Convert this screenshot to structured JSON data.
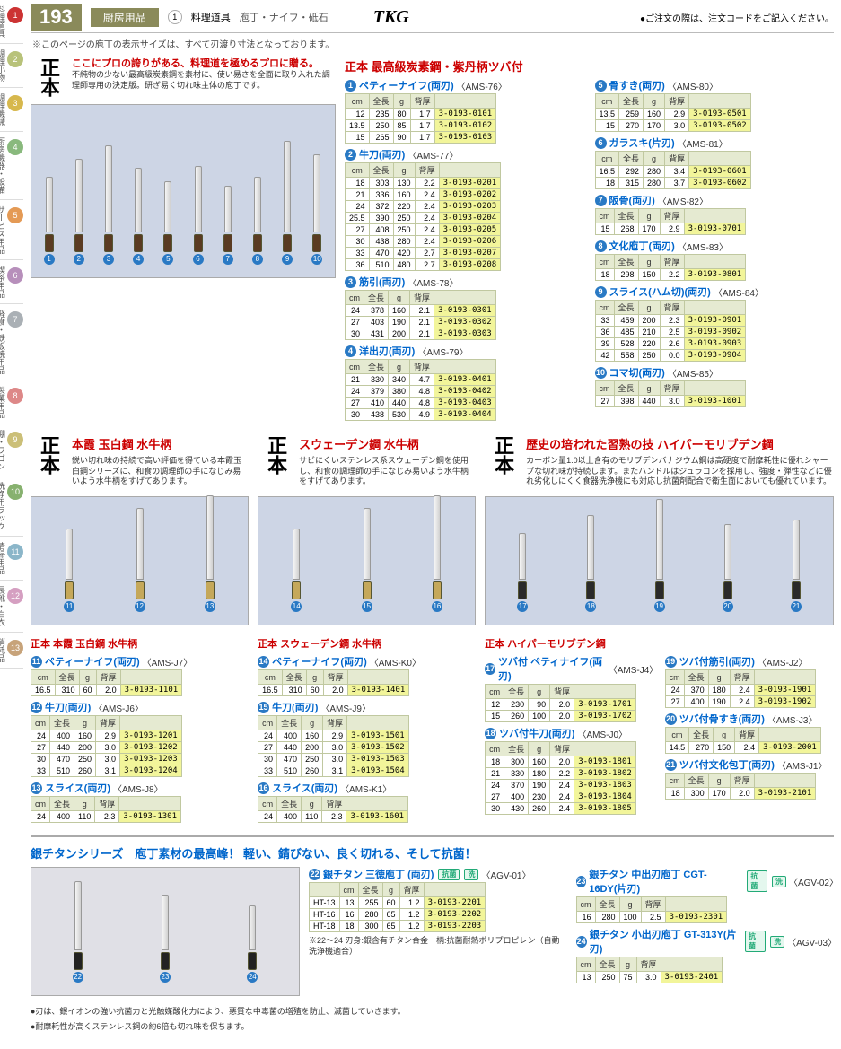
{
  "header": {
    "page_number": "193",
    "category": "厨房用品",
    "section_num": "1",
    "section": "料理道具",
    "subsection": "庖丁・ナイフ・砥石",
    "brand": "TKG",
    "order_note": "●ご注文の際は、注文コードをご記入ください。"
  },
  "sidebar": [
    {
      "n": "1",
      "label": "料理道具",
      "bg": "#c33"
    },
    {
      "n": "2",
      "label": "調理小物",
      "bg": "#b8c27a"
    },
    {
      "n": "3",
      "label": "調理機械",
      "bg": "#d7b84d"
    },
    {
      "n": "4",
      "label": "厨房機器・設備",
      "bg": "#89b97d"
    },
    {
      "n": "5",
      "label": "サービス用品",
      "bg": "#e49a55"
    },
    {
      "n": "6",
      "label": "喫茶用品",
      "bg": "#b78fbb"
    },
    {
      "n": "7",
      "label": "軽食・鉄板焼用品",
      "bg": "#aab0b5"
    },
    {
      "n": "8",
      "label": "製菓用品",
      "bg": "#d88"
    },
    {
      "n": "9",
      "label": "棚・ワゴン",
      "bg": "#cbbf78"
    },
    {
      "n": "10",
      "label": "洗浄用ラック",
      "bg": "#87b16f"
    },
    {
      "n": "11",
      "label": "清掃用品",
      "bg": "#8bb6c9"
    },
    {
      "n": "12",
      "label": "長靴・白衣",
      "bg": "#d59fc1"
    },
    {
      "n": "13",
      "label": "消耗品",
      "bg": "#c7a37a"
    }
  ],
  "top_note": "※このページの庖丁の表示サイズは、すべて刃渡り寸法となっております。",
  "brand_logo": "正本",
  "blockA": {
    "lead_red": "ここにプロの誇りがある、料理道を極めるプロに贈る。",
    "lead_txt": "不純物の少ない最高級炭素鋼を素材に、使い易さを全面に取り入れた調理師専用の決定版。研ぎ易く切れ味主体の庖丁です。",
    "image_knives": [
      {
        "n": "1",
        "blade": 60,
        "handle": 18,
        "hc": "#5a3b22"
      },
      {
        "n": "2",
        "blade": 80,
        "handle": 20,
        "hc": "#5a3b22"
      },
      {
        "n": "3",
        "blade": 95,
        "handle": 22,
        "hc": "#5a3b22"
      },
      {
        "n": "4",
        "blade": 70,
        "handle": 20,
        "hc": "#5a3b22"
      },
      {
        "n": "5",
        "blade": 55,
        "handle": 18,
        "hc": "#5a3b22"
      },
      {
        "n": "6",
        "blade": 72,
        "handle": 20,
        "hc": "#5a3b22"
      },
      {
        "n": "7",
        "blade": 50,
        "handle": 18,
        "hc": "#5a3b22"
      },
      {
        "n": "8",
        "blade": 60,
        "handle": 20,
        "hc": "#5a3b22"
      },
      {
        "n": "9",
        "blade": 100,
        "handle": 22,
        "hc": "#5a3b22"
      },
      {
        "n": "10",
        "blade": 85,
        "handle": 22,
        "hc": "#5a3b22"
      }
    ],
    "section_title": "正本 最高級炭素鋼・紫丹柄ツバ付",
    "left": [
      {
        "n": "1",
        "name": "ペティーナイフ(両刃)",
        "code": "〈AMS-76〉",
        "hdr": [
          "cm",
          "全長",
          "g",
          "背厚",
          ""
        ],
        "rows": [
          [
            "12",
            "235",
            "80",
            "1.7",
            "3-0193-0101"
          ],
          [
            "13.5",
            "250",
            "85",
            "1.7",
            "3-0193-0102"
          ],
          [
            "15",
            "265",
            "90",
            "1.7",
            "3-0193-0103"
          ]
        ]
      },
      {
        "n": "2",
        "name": "牛刀(両刃)",
        "code": "〈AMS-77〉",
        "hdr": [
          "cm",
          "全長",
          "g",
          "背厚",
          ""
        ],
        "rows": [
          [
            "18",
            "303",
            "130",
            "2.2",
            "3-0193-0201"
          ],
          [
            "21",
            "336",
            "160",
            "2.4",
            "3-0193-0202"
          ],
          [
            "24",
            "372",
            "220",
            "2.4",
            "3-0193-0203"
          ],
          [
            "25.5",
            "390",
            "250",
            "2.4",
            "3-0193-0204"
          ],
          [
            "27",
            "408",
            "250",
            "2.4",
            "3-0193-0205"
          ],
          [
            "30",
            "438",
            "280",
            "2.4",
            "3-0193-0206"
          ],
          [
            "33",
            "470",
            "420",
            "2.7",
            "3-0193-0207"
          ],
          [
            "36",
            "510",
            "480",
            "2.7",
            "3-0193-0208"
          ]
        ]
      },
      {
        "n": "3",
        "name": "筋引(両刃)",
        "code": "〈AMS-78〉",
        "hdr": [
          "cm",
          "全長",
          "g",
          "背厚",
          ""
        ],
        "rows": [
          [
            "24",
            "378",
            "160",
            "2.1",
            "3-0193-0301"
          ],
          [
            "27",
            "403",
            "190",
            "2.1",
            "3-0193-0302"
          ],
          [
            "30",
            "431",
            "200",
            "2.1",
            "3-0193-0303"
          ]
        ]
      },
      {
        "n": "4",
        "name": "洋出刃(両刃)",
        "code": "〈AMS-79〉",
        "hdr": [
          "cm",
          "全長",
          "g",
          "背厚",
          ""
        ],
        "rows": [
          [
            "21",
            "330",
            "340",
            "4.7",
            "3-0193-0401"
          ],
          [
            "24",
            "379",
            "380",
            "4.8",
            "3-0193-0402"
          ],
          [
            "27",
            "410",
            "440",
            "4.8",
            "3-0193-0403"
          ],
          [
            "30",
            "438",
            "530",
            "4.9",
            "3-0193-0404"
          ]
        ]
      }
    ],
    "right": [
      {
        "n": "5",
        "name": "骨すき(両刃)",
        "code": "〈AMS-80〉",
        "hdr": [
          "cm",
          "全長",
          "g",
          "背厚",
          ""
        ],
        "rows": [
          [
            "13.5",
            "259",
            "160",
            "2.9",
            "3-0193-0501"
          ],
          [
            "15",
            "270",
            "170",
            "3.0",
            "3-0193-0502"
          ]
        ]
      },
      {
        "n": "6",
        "name": "ガラスキ(片刃)",
        "code": "〈AMS-81〉",
        "hdr": [
          "cm",
          "全長",
          "g",
          "背厚",
          ""
        ],
        "rows": [
          [
            "16.5",
            "292",
            "280",
            "3.4",
            "3-0193-0601"
          ],
          [
            "18",
            "315",
            "280",
            "3.7",
            "3-0193-0602"
          ]
        ]
      },
      {
        "n": "7",
        "name": "阪骨(両刃)",
        "code": "〈AMS-82〉",
        "hdr": [
          "cm",
          "全長",
          "g",
          "背厚",
          ""
        ],
        "rows": [
          [
            "15",
            "268",
            "170",
            "2.9",
            "3-0193-0701"
          ]
        ]
      },
      {
        "n": "8",
        "name": "文化庖丁(両刃)",
        "code": "〈AMS-83〉",
        "hdr": [
          "cm",
          "全長",
          "g",
          "背厚",
          ""
        ],
        "rows": [
          [
            "18",
            "298",
            "150",
            "2.2",
            "3-0193-0801"
          ]
        ]
      },
      {
        "n": "9",
        "name": "スライス(ハム切)(両刃)",
        "code": "〈AMS-84〉",
        "hdr": [
          "cm",
          "全長",
          "g",
          "背厚",
          ""
        ],
        "rows": [
          [
            "33",
            "459",
            "200",
            "2.3",
            "3-0193-0901"
          ],
          [
            "36",
            "485",
            "210",
            "2.5",
            "3-0193-0902"
          ],
          [
            "39",
            "528",
            "220",
            "2.6",
            "3-0193-0903"
          ],
          [
            "42",
            "558",
            "250",
            "0.0",
            "3-0193-0904"
          ]
        ]
      },
      {
        "n": "10",
        "name": "コマ切(両刃)",
        "code": "〈AMS-85〉",
        "hdr": [
          "cm",
          "全長",
          "g",
          "背厚",
          ""
        ],
        "rows": [
          [
            "27",
            "398",
            "440",
            "3.0",
            "3-0193-1001"
          ]
        ]
      }
    ]
  },
  "blockB": {
    "groups": [
      {
        "title": "本霞 玉白鋼 水牛柄",
        "desc": "鋭い切れ味の持続で高い評価を得ている本霞玉白鋼シリーズに、和食の調理師の手になじみ易いよう水牛柄をすげてあります。",
        "handle_color": "#c5a85a",
        "knives": [
          {
            "n": "11",
            "b": 55
          },
          {
            "n": "12",
            "b": 78
          },
          {
            "n": "13",
            "b": 92
          }
        ]
      },
      {
        "title": "スウェーデン鋼 水牛柄",
        "desc": "サビにくいステンレス系スウェーデン鋼を使用し、和食の調理師の手になじみ易いよう水牛柄をすげてあります。",
        "handle_color": "#c5a85a",
        "knives": [
          {
            "n": "14",
            "b": 55
          },
          {
            "n": "15",
            "b": 78
          },
          {
            "n": "16",
            "b": 92
          }
        ]
      },
      {
        "title": "歴史の培われた習熟の技 ハイパーモリブデン鋼",
        "desc": "カーボン量1.0以上含有のモリブデンバナジウム鋼は高硬度で耐摩耗性に優れシャープな切れ味が持続します。またハンドルはジュラコンを採用し、強度・弾性などに優れ劣化しにくく食器洗浄機にも対応し抗菌剤配合で衛生面においても優れています。",
        "handle_color": "#2a2a2a",
        "knives": [
          {
            "n": "17",
            "b": 50
          },
          {
            "n": "18",
            "b": 70
          },
          {
            "n": "19",
            "b": 88
          },
          {
            "n": "20",
            "b": 60
          },
          {
            "n": "21",
            "b": 65
          }
        ]
      }
    ],
    "col1": {
      "heading": "正本 本霞 玉白鋼 水牛柄",
      "items": [
        {
          "n": "11",
          "name": "ペティーナイフ(両刃)",
          "code": "〈AMS-J7〉",
          "hdr": [
            "cm",
            "全長",
            "g",
            "背厚",
            ""
          ],
          "rows": [
            [
              "16.5",
              "310",
              "60",
              "2.0",
              "3-0193-1101"
            ]
          ]
        },
        {
          "n": "12",
          "name": "牛刀(両刃)",
          "code": "〈AMS-J6〉",
          "hdr": [
            "cm",
            "全長",
            "g",
            "背厚",
            ""
          ],
          "rows": [
            [
              "24",
              "400",
              "160",
              "2.9",
              "3-0193-1201"
            ],
            [
              "27",
              "440",
              "200",
              "3.0",
              "3-0193-1202"
            ],
            [
              "30",
              "470",
              "250",
              "3.0",
              "3-0193-1203"
            ],
            [
              "33",
              "510",
              "260",
              "3.1",
              "3-0193-1204"
            ]
          ]
        },
        {
          "n": "13",
          "name": "スライス(両刃)",
          "code": "〈AMS-J8〉",
          "hdr": [
            "cm",
            "全長",
            "g",
            "背厚",
            ""
          ],
          "rows": [
            [
              "24",
              "400",
              "110",
              "2.3",
              "3-0193-1301"
            ]
          ]
        }
      ]
    },
    "col2": {
      "heading": "正本 スウェーデン鋼 水牛柄",
      "items": [
        {
          "n": "14",
          "name": "ペティーナイフ(両刃)",
          "code": "〈AMS-K0〉",
          "hdr": [
            "cm",
            "全長",
            "g",
            "背厚",
            ""
          ],
          "rows": [
            [
              "16.5",
              "310",
              "60",
              "2.0",
              "3-0193-1401"
            ]
          ]
        },
        {
          "n": "15",
          "name": "牛刀(両刃)",
          "code": "〈AMS-J9〉",
          "hdr": [
            "cm",
            "全長",
            "g",
            "背厚",
            ""
          ],
          "rows": [
            [
              "24",
              "400",
              "160",
              "2.9",
              "3-0193-1501"
            ],
            [
              "27",
              "440",
              "200",
              "3.0",
              "3-0193-1502"
            ],
            [
              "30",
              "470",
              "250",
              "3.0",
              "3-0193-1503"
            ],
            [
              "33",
              "510",
              "260",
              "3.1",
              "3-0193-1504"
            ]
          ]
        },
        {
          "n": "16",
          "name": "スライス(両刃)",
          "code": "〈AMS-K1〉",
          "hdr": [
            "cm",
            "全長",
            "g",
            "背厚",
            ""
          ],
          "rows": [
            [
              "24",
              "400",
              "110",
              "2.3",
              "3-0193-1601"
            ]
          ]
        }
      ]
    },
    "col3": {
      "heading": "正本 ハイパーモリブデン鋼",
      "left": [
        {
          "n": "17",
          "name": "ツバ付 ペティナイフ(両刃)",
          "code": "〈AMS-J4〉",
          "hdr": [
            "cm",
            "全長",
            "g",
            "背厚",
            ""
          ],
          "rows": [
            [
              "12",
              "230",
              "90",
              "2.0",
              "3-0193-1701"
            ],
            [
              "15",
              "260",
              "100",
              "2.0",
              "3-0193-1702"
            ]
          ]
        },
        {
          "n": "18",
          "name": "ツバ付牛刀(両刃)",
          "code": "〈AMS-J0〉",
          "hdr": [
            "cm",
            "全長",
            "g",
            "背厚",
            ""
          ],
          "rows": [
            [
              "18",
              "300",
              "160",
              "2.0",
              "3-0193-1801"
            ],
            [
              "21",
              "330",
              "180",
              "2.2",
              "3-0193-1802"
            ],
            [
              "24",
              "370",
              "190",
              "2.4",
              "3-0193-1803"
            ],
            [
              "27",
              "400",
              "230",
              "2.4",
              "3-0193-1804"
            ],
            [
              "30",
              "430",
              "260",
              "2.4",
              "3-0193-1805"
            ]
          ]
        }
      ],
      "right": [
        {
          "n": "19",
          "name": "ツバ付筋引(両刃)",
          "code": "〈AMS-J2〉",
          "hdr": [
            "cm",
            "全長",
            "g",
            "背厚",
            ""
          ],
          "rows": [
            [
              "24",
              "370",
              "180",
              "2.4",
              "3-0193-1901"
            ],
            [
              "27",
              "400",
              "190",
              "2.4",
              "3-0193-1902"
            ]
          ]
        },
        {
          "n": "20",
          "name": "ツバ付骨すき(両刃)",
          "code": "〈AMS-J3〉",
          "hdr": [
            "cm",
            "全長",
            "g",
            "背厚",
            ""
          ],
          "rows": [
            [
              "14.5",
              "270",
              "150",
              "2.4",
              "3-0193-2001"
            ]
          ]
        },
        {
          "n": "21",
          "name": "ツバ付文化包丁(両刃)",
          "code": "〈AMS-J1〉",
          "hdr": [
            "cm",
            "全長",
            "g",
            "背厚",
            ""
          ],
          "rows": [
            [
              "18",
              "300",
              "170",
              "2.0",
              "3-0193-2101"
            ]
          ]
        }
      ]
    }
  },
  "titan": {
    "heading": "銀チタンシリーズ　庖丁素材の最高峰！ 軽い、錆びない、良く切れる、そして抗菌！",
    "knives": [
      {
        "n": "22",
        "b": 75
      },
      {
        "n": "23",
        "b": 60
      },
      {
        "n": "24",
        "b": 48
      }
    ],
    "left": {
      "n": "22",
      "name": "銀チタン 三徳庖丁 (両刃)",
      "badges": [
        "抗菌",
        "洗"
      ],
      "code": "〈AGV-01〉",
      "hdr": [
        "",
        "cm",
        "全長",
        "g",
        "背厚",
        ""
      ],
      "rows": [
        [
          "HT-13",
          "13",
          "255",
          "60",
          "1.2",
          "3-0193-2201"
        ],
        [
          "HT-16",
          "16",
          "280",
          "65",
          "1.2",
          "3-0193-2202"
        ],
        [
          "HT-18",
          "18",
          "300",
          "65",
          "1.2",
          "3-0193-2203"
        ]
      ],
      "note": "※22〜24 刃身:銀含有チタン合金　柄:抗菌耐熱ポリプロピレン（自動洗浄機適合）"
    },
    "right": [
      {
        "n": "23",
        "name": "銀チタン 中出刃庖丁 CGT-16DY(片刃)",
        "badges": [
          "抗菌",
          "洗"
        ],
        "code": "〈AGV-02〉",
        "hdr": [
          "cm",
          "全長",
          "g",
          "背厚",
          ""
        ],
        "rows": [
          [
            "16",
            "280",
            "100",
            "2.5",
            "3-0193-2301"
          ]
        ]
      },
      {
        "n": "24",
        "name": "銀チタン 小出刃庖丁 GT-313Y(片刃)",
        "badges": [
          "抗菌",
          "洗"
        ],
        "code": "〈AGV-03〉",
        "hdr": [
          "cm",
          "全長",
          "g",
          "背厚",
          ""
        ],
        "rows": [
          [
            "13",
            "250",
            "75",
            "3.0",
            "3-0193-2401"
          ]
        ]
      }
    ],
    "bullets": [
      "●刃は、銀イオンの強い抗菌力と光触媒酸化力により、悪質な中毒菌の増殖を防止、滅菌していきます。",
      "●耐摩耗性が高くステンレス鋼の約6倍も切れ味を保ちます。"
    ]
  }
}
